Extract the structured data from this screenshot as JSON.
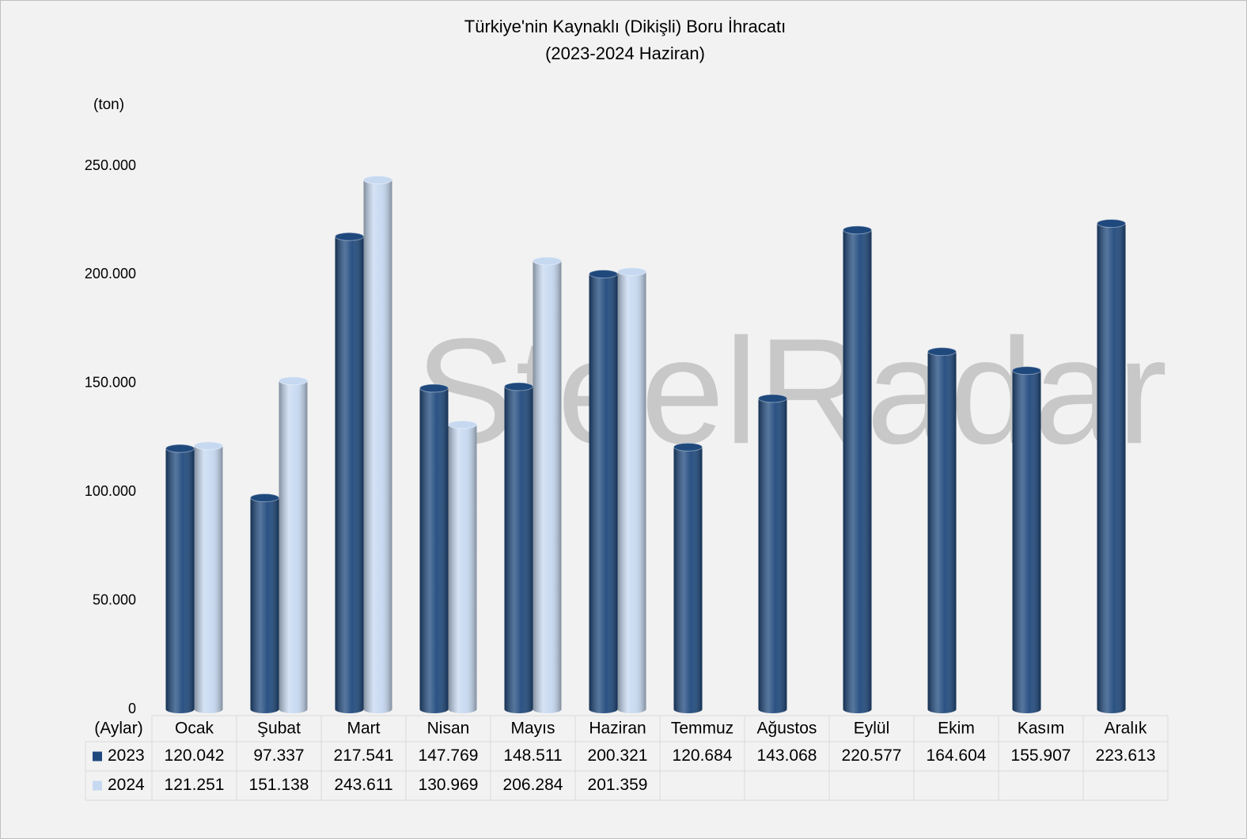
{
  "chart_data": {
    "type": "bar",
    "title": "Türkiye'nin  Kaynaklı (Dikişli) Boru İhracatı",
    "subtitle": "(2023-2024 Haziran)",
    "y_label": "(ton)",
    "x_label": "(Aylar)",
    "watermark": "SteelRadar",
    "categories": [
      "Ocak",
      "Şubat",
      "Mart",
      "Nisan",
      "Mayıs",
      "Haziran",
      "Temmuz",
      "Ağustos",
      "Eylül",
      "Ekim",
      "Kasım",
      "Aralık"
    ],
    "series": [
      {
        "name": "2023",
        "color": "#1f497d",
        "values": [
          120042,
          97337,
          217541,
          147769,
          148511,
          200321,
          120684,
          143068,
          220577,
          164604,
          155907,
          223613
        ],
        "value_labels": [
          "120.042",
          "97.337",
          "217.541",
          "147.769",
          "148.511",
          "200.321",
          "120.684",
          "143.068",
          "220.577",
          "164.604",
          "155.907",
          "223.613"
        ]
      },
      {
        "name": "2024",
        "color": "#c6d9f1",
        "values": [
          121251,
          151138,
          243611,
          130969,
          206284,
          201359,
          null,
          null,
          null,
          null,
          null,
          null
        ],
        "value_labels": [
          "121.251",
          "151.138",
          "243.611",
          "130.969",
          "206.284",
          "201.359",
          null,
          null,
          null,
          null,
          null,
          null
        ]
      }
    ],
    "ylim": [
      0,
      250000
    ],
    "yticks": [
      0,
      {
        "value": 50000,
        "label": "50.000"
      },
      {
        "value": 100000,
        "label": "100.000"
      },
      {
        "value": 150000,
        "label": "150.000"
      },
      {
        "value": 200000,
        "label": "200.000"
      },
      {
        "value": 250000,
        "label": "250.000"
      }
    ],
    "grid": false,
    "data_table": true
  }
}
